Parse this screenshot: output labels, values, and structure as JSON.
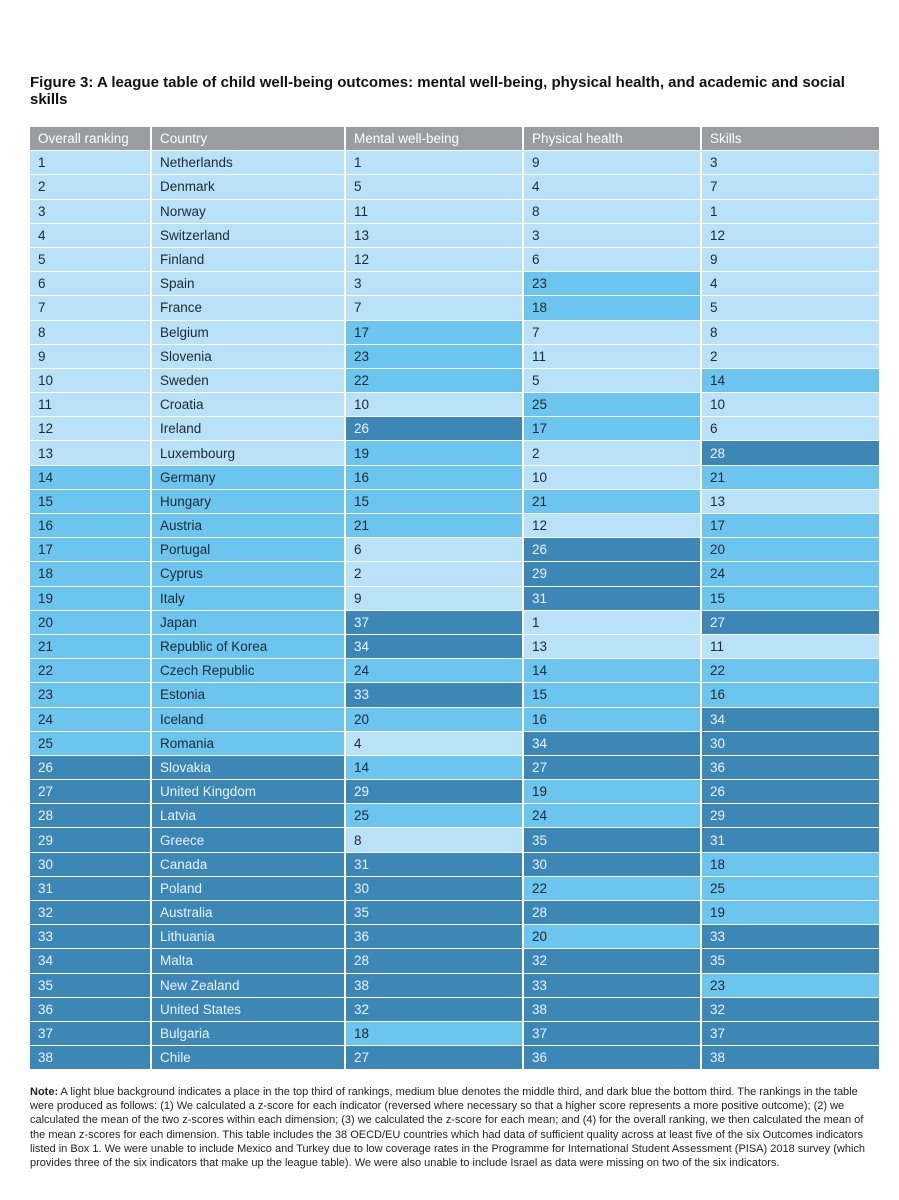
{
  "title": "Figure 3: A league table of child well-being outcomes: mental well-being, physical health, and academic and social skills",
  "colors": {
    "light": "#b9e1f7",
    "medium": "#6cc5ef",
    "dark": "#3d87b6",
    "header": "#9a9c9f"
  },
  "table": {
    "headers": [
      "Overall ranking",
      "Country",
      "Mental well-being",
      "Physical health",
      "Skills"
    ],
    "rows": [
      {
        "rank": "1",
        "country": "Netherlands",
        "mental": "1",
        "physical": "9",
        "skills": "3",
        "c": [
          "l",
          "l",
          "l",
          "l",
          "l"
        ]
      },
      {
        "rank": "2",
        "country": "Denmark",
        "mental": "5",
        "physical": "4",
        "skills": "7",
        "c": [
          "l",
          "l",
          "l",
          "l",
          "l"
        ]
      },
      {
        "rank": "3",
        "country": "Norway",
        "mental": "11",
        "physical": "8",
        "skills": "1",
        "c": [
          "l",
          "l",
          "l",
          "l",
          "l"
        ]
      },
      {
        "rank": "4",
        "country": "Switzerland",
        "mental": "13",
        "physical": "3",
        "skills": "12",
        "c": [
          "l",
          "l",
          "l",
          "l",
          "l"
        ]
      },
      {
        "rank": "5",
        "country": "Finland",
        "mental": "12",
        "physical": "6",
        "skills": "9",
        "c": [
          "l",
          "l",
          "l",
          "l",
          "l"
        ]
      },
      {
        "rank": "6",
        "country": "Spain",
        "mental": "3",
        "physical": "23",
        "skills": "4",
        "c": [
          "l",
          "l",
          "l",
          "m",
          "l"
        ]
      },
      {
        "rank": "7",
        "country": "France",
        "mental": "7",
        "physical": "18",
        "skills": "5",
        "c": [
          "l",
          "l",
          "l",
          "m",
          "l"
        ]
      },
      {
        "rank": "8",
        "country": "Belgium",
        "mental": "17",
        "physical": "7",
        "skills": "8",
        "c": [
          "l",
          "l",
          "m",
          "l",
          "l"
        ]
      },
      {
        "rank": "9",
        "country": "Slovenia",
        "mental": "23",
        "physical": "11",
        "skills": "2",
        "c": [
          "l",
          "l",
          "m",
          "l",
          "l"
        ]
      },
      {
        "rank": "10",
        "country": "Sweden",
        "mental": "22",
        "physical": "5",
        "skills": "14",
        "c": [
          "l",
          "l",
          "m",
          "l",
          "m"
        ]
      },
      {
        "rank": "11",
        "country": "Croatia",
        "mental": "10",
        "physical": "25",
        "skills": "10",
        "c": [
          "l",
          "l",
          "l",
          "m",
          "l"
        ]
      },
      {
        "rank": "12",
        "country": "Ireland",
        "mental": "26",
        "physical": "17",
        "skills": "6",
        "c": [
          "l",
          "l",
          "d",
          "m",
          "l"
        ]
      },
      {
        "rank": "13",
        "country": "Luxembourg",
        "mental": "19",
        "physical": "2",
        "skills": "28",
        "c": [
          "l",
          "l",
          "m",
          "l",
          "d"
        ]
      },
      {
        "rank": "14",
        "country": "Germany",
        "mental": "16",
        "physical": "10",
        "skills": "21",
        "c": [
          "m",
          "m",
          "m",
          "l",
          "m"
        ]
      },
      {
        "rank": "15",
        "country": "Hungary",
        "mental": "15",
        "physical": "21",
        "skills": "13",
        "c": [
          "m",
          "m",
          "m",
          "m",
          "l"
        ]
      },
      {
        "rank": "16",
        "country": "Austria",
        "mental": "21",
        "physical": "12",
        "skills": "17",
        "c": [
          "m",
          "m",
          "m",
          "l",
          "m"
        ]
      },
      {
        "rank": "17",
        "country": "Portugal",
        "mental": "6",
        "physical": "26",
        "skills": "20",
        "c": [
          "m",
          "m",
          "l",
          "d",
          "m"
        ]
      },
      {
        "rank": "18",
        "country": "Cyprus",
        "mental": "2",
        "physical": "29",
        "skills": "24",
        "c": [
          "m",
          "m",
          "l",
          "d",
          "m"
        ]
      },
      {
        "rank": "19",
        "country": "Italy",
        "mental": "9",
        "physical": "31",
        "skills": "15",
        "c": [
          "m",
          "m",
          "l",
          "d",
          "m"
        ]
      },
      {
        "rank": "20",
        "country": "Japan",
        "mental": "37",
        "physical": "1",
        "skills": "27",
        "c": [
          "m",
          "m",
          "d",
          "l",
          "d"
        ]
      },
      {
        "rank": "21",
        "country": "Republic of Korea",
        "mental": "34",
        "physical": "13",
        "skills": "11",
        "c": [
          "m",
          "m",
          "d",
          "l",
          "l"
        ]
      },
      {
        "rank": "22",
        "country": "Czech Republic",
        "mental": "24",
        "physical": "14",
        "skills": "22",
        "c": [
          "m",
          "m",
          "m",
          "m",
          "m"
        ]
      },
      {
        "rank": "23",
        "country": "Estonia",
        "mental": "33",
        "physical": "15",
        "skills": "16",
        "c": [
          "m",
          "m",
          "d",
          "m",
          "m"
        ]
      },
      {
        "rank": "24",
        "country": "Iceland",
        "mental": "20",
        "physical": "16",
        "skills": "34",
        "c": [
          "m",
          "m",
          "m",
          "m",
          "d"
        ]
      },
      {
        "rank": "25",
        "country": "Romania",
        "mental": "4",
        "physical": "34",
        "skills": "30",
        "c": [
          "m",
          "m",
          "l",
          "d",
          "d"
        ]
      },
      {
        "rank": "26",
        "country": "Slovakia",
        "mental": "14",
        "physical": "27",
        "skills": "36",
        "c": [
          "d",
          "d",
          "m",
          "d",
          "d"
        ]
      },
      {
        "rank": "27",
        "country": "United Kingdom",
        "mental": "29",
        "physical": "19",
        "skills": "26",
        "c": [
          "d",
          "d",
          "d",
          "m",
          "d"
        ]
      },
      {
        "rank": "28",
        "country": "Latvia",
        "mental": "25",
        "physical": "24",
        "skills": "29",
        "c": [
          "d",
          "d",
          "m",
          "m",
          "d"
        ]
      },
      {
        "rank": "29",
        "country": "Greece",
        "mental": "8",
        "physical": "35",
        "skills": "31",
        "c": [
          "d",
          "d",
          "l",
          "d",
          "d"
        ]
      },
      {
        "rank": "30",
        "country": "Canada",
        "mental": "31",
        "physical": "30",
        "skills": "18",
        "c": [
          "d",
          "d",
          "d",
          "d",
          "m"
        ]
      },
      {
        "rank": "31",
        "country": "Poland",
        "mental": "30",
        "physical": "22",
        "skills": "25",
        "c": [
          "d",
          "d",
          "d",
          "m",
          "m"
        ]
      },
      {
        "rank": "32",
        "country": "Australia",
        "mental": "35",
        "physical": "28",
        "skills": "19",
        "c": [
          "d",
          "d",
          "d",
          "d",
          "m"
        ]
      },
      {
        "rank": "33",
        "country": "Lithuania",
        "mental": "36",
        "physical": "20",
        "skills": "33",
        "c": [
          "d",
          "d",
          "d",
          "m",
          "d"
        ]
      },
      {
        "rank": "34",
        "country": "Malta",
        "mental": "28",
        "physical": "32",
        "skills": "35",
        "c": [
          "d",
          "d",
          "d",
          "d",
          "d"
        ]
      },
      {
        "rank": "35",
        "country": "New Zealand",
        "mental": "38",
        "physical": "33",
        "skills": "23",
        "c": [
          "d",
          "d",
          "d",
          "d",
          "m"
        ]
      },
      {
        "rank": "36",
        "country": "United States",
        "mental": "32",
        "physical": "38",
        "skills": "32",
        "c": [
          "d",
          "d",
          "d",
          "d",
          "d"
        ]
      },
      {
        "rank": "37",
        "country": "Bulgaria",
        "mental": "18",
        "physical": "37",
        "skills": "37",
        "c": [
          "d",
          "d",
          "m",
          "d",
          "d"
        ]
      },
      {
        "rank": "38",
        "country": "Chile",
        "mental": "27",
        "physical": "36",
        "skills": "38",
        "c": [
          "d",
          "d",
          "d",
          "d",
          "d"
        ]
      }
    ]
  },
  "note": {
    "label": "Note:",
    "text": " A light blue background indicates a place in the top third of rankings, medium blue denotes the middle third, and dark blue the bottom third. The rankings in the table were produced as follows: (1) We calculated a z-score for each indicator (reversed where necessary so that a higher score represents a more positive outcome); (2) we calculated the mean of the two z-scores within each dimension; (3) we calculated the z-score for each mean; and (4) for the overall ranking, we then calculated the mean of the mean z-scores for each dimension. This table includes the 38 OECD/EU countries which had data of sufficient quality across at least five of the six Outcomes indicators listed in Box 1. We were unable to include Mexico and Turkey due to low coverage rates in the Programme for International Student Assessment (PISA) 2018 survey (which provides three of the six indicators that make up the league table). We were also unable to include Israel as data were missing on two of the six indicators."
  }
}
